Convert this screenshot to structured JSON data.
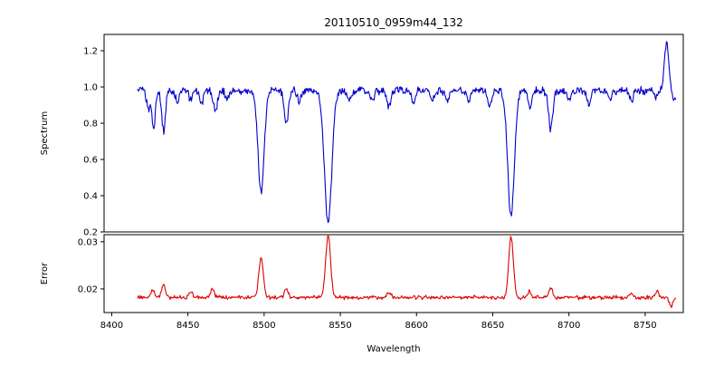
{
  "chart_data": [
    {
      "type": "line",
      "title": "20110510_0959m44_132",
      "xlabel": "Wavelength",
      "ylabel": "Spectrum",
      "color": "#0000cc",
      "legend": "none",
      "grid": false,
      "xlim": [
        8395,
        8775
      ],
      "ylim": [
        0.2,
        1.29
      ],
      "xticks": [
        8400,
        8450,
        8500,
        8550,
        8600,
        8650,
        8700,
        8750
      ],
      "xtick_labels": [
        "8400",
        "8450",
        "8500",
        "8550",
        "8600",
        "8650",
        "8700",
        "8750"
      ],
      "yticks": [
        0.2,
        0.4,
        0.6,
        0.8,
        1.0,
        1.2
      ],
      "ytick_labels": [
        "0.2",
        "0.4",
        "0.6",
        "0.8",
        "1.0",
        "1.2"
      ],
      "x_start": 8417,
      "x_end": 8770,
      "continuum": 0.98,
      "noise_amplitude": 0.026,
      "features": [
        {
          "center": 8424.0,
          "amplitude": -0.1,
          "sigma": 1.2
        },
        {
          "center": 8427.5,
          "amplitude": -0.21,
          "sigma": 1.1
        },
        {
          "center": 8434.0,
          "amplitude": -0.22,
          "sigma": 1.2
        },
        {
          "center": 8443.0,
          "amplitude": -0.06,
          "sigma": 1.2
        },
        {
          "center": 8452.0,
          "amplitude": -0.05,
          "sigma": 1.2
        },
        {
          "center": 8459.0,
          "amplitude": -0.07,
          "sigma": 1.2
        },
        {
          "center": 8468.0,
          "amplitude": -0.11,
          "sigma": 1.3
        },
        {
          "center": 8476.0,
          "amplitude": -0.05,
          "sigma": 1.2
        },
        {
          "center": 8498.0,
          "amplitude": -0.56,
          "sigma": 2.0
        },
        {
          "center": 8514.5,
          "amplitude": -0.19,
          "sigma": 1.3
        },
        {
          "center": 8523.0,
          "amplitude": -0.06,
          "sigma": 1.2
        },
        {
          "center": 8542.0,
          "amplitude": -0.73,
          "sigma": 2.4
        },
        {
          "center": 8556.0,
          "amplitude": -0.05,
          "sigma": 1.2
        },
        {
          "center": 8571.0,
          "amplitude": -0.06,
          "sigma": 1.2
        },
        {
          "center": 8582.0,
          "amplitude": -0.09,
          "sigma": 1.3
        },
        {
          "center": 8598.0,
          "amplitude": -0.07,
          "sigma": 1.2
        },
        {
          "center": 8611.0,
          "amplitude": -0.05,
          "sigma": 1.2
        },
        {
          "center": 8620.0,
          "amplitude": -0.06,
          "sigma": 1.2
        },
        {
          "center": 8634.0,
          "amplitude": -0.05,
          "sigma": 1.2
        },
        {
          "center": 8648.0,
          "amplitude": -0.09,
          "sigma": 1.3
        },
        {
          "center": 8662.0,
          "amplitude": -0.69,
          "sigma": 2.2
        },
        {
          "center": 8674.5,
          "amplitude": -0.1,
          "sigma": 1.2
        },
        {
          "center": 8688.0,
          "amplitude": -0.21,
          "sigma": 1.4
        },
        {
          "center": 8700.0,
          "amplitude": -0.05,
          "sigma": 1.2
        },
        {
          "center": 8713.0,
          "amplitude": -0.07,
          "sigma": 1.2
        },
        {
          "center": 8727.0,
          "amplitude": -0.05,
          "sigma": 1.2
        },
        {
          "center": 8741.0,
          "amplitude": -0.06,
          "sigma": 1.2
        },
        {
          "center": 8757.0,
          "amplitude": -0.04,
          "sigma": 1.2
        },
        {
          "center": 8764.0,
          "amplitude": 0.26,
          "sigma": 1.4
        },
        {
          "center": 8769.0,
          "amplitude": -0.05,
          "sigma": 1.0
        }
      ]
    },
    {
      "type": "line",
      "title": "",
      "xlabel": "Wavelength",
      "ylabel": "Error",
      "color": "#e00000",
      "legend": "none",
      "grid": false,
      "xlim": [
        8395,
        8775
      ],
      "ylim": [
        0.015,
        0.0315
      ],
      "yticks": [
        0.02,
        0.03
      ],
      "ytick_labels": [
        "0.02",
        "0.03"
      ],
      "x_start": 8417,
      "x_end": 8770,
      "continuum": 0.0182,
      "noise_amplitude": 0.0005,
      "features": [
        {
          "center": 8427.0,
          "amplitude": 0.0015,
          "sigma": 1.2
        },
        {
          "center": 8434.0,
          "amplitude": 0.0028,
          "sigma": 1.2
        },
        {
          "center": 8452.0,
          "amplitude": 0.0012,
          "sigma": 1.2
        },
        {
          "center": 8466.0,
          "amplitude": 0.0018,
          "sigma": 1.3
        },
        {
          "center": 8498.0,
          "amplitude": 0.0085,
          "sigma": 1.5
        },
        {
          "center": 8514.5,
          "amplitude": 0.0018,
          "sigma": 1.2
        },
        {
          "center": 8542.0,
          "amplitude": 0.0132,
          "sigma": 1.6
        },
        {
          "center": 8582.0,
          "amplitude": 0.001,
          "sigma": 1.2
        },
        {
          "center": 8662.0,
          "amplitude": 0.013,
          "sigma": 1.5
        },
        {
          "center": 8674.0,
          "amplitude": 0.0012,
          "sigma": 1.2
        },
        {
          "center": 8688.0,
          "amplitude": 0.002,
          "sigma": 1.3
        },
        {
          "center": 8741.0,
          "amplitude": 0.0008,
          "sigma": 1.2
        },
        {
          "center": 8758.0,
          "amplitude": 0.0012,
          "sigma": 1.2
        },
        {
          "center": 8767.0,
          "amplitude": -0.0018,
          "sigma": 1.2
        }
      ]
    }
  ]
}
